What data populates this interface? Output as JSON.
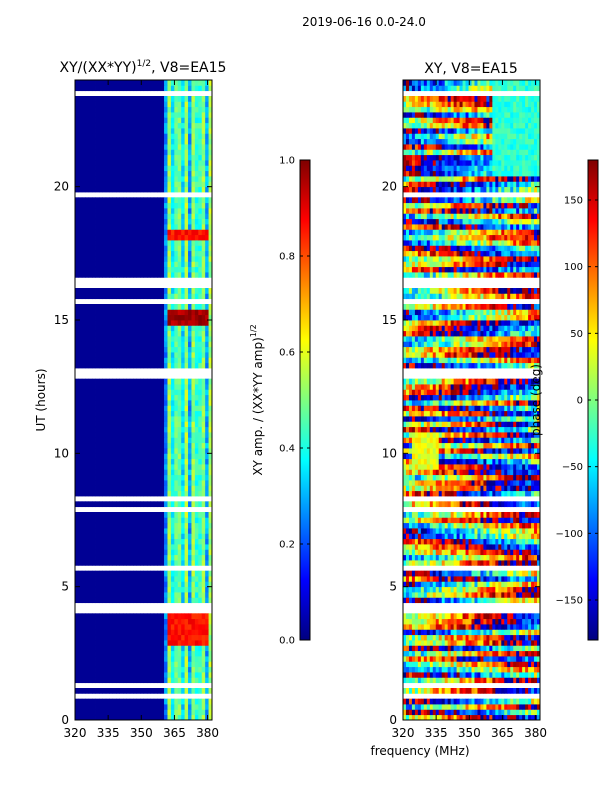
{
  "figure": {
    "suptitle": "2019-06-16 0.0-24.0",
    "shared_xlabel": "frequency (MHz)"
  },
  "chart_data": [
    {
      "type": "heatmap",
      "title": "XY/(XX*YY)^1/2, V8=EA15",
      "title_main": "XY/(XX*YY)",
      "title_sup": "1/2",
      "title_tail": ", V8=EA15",
      "xlabel": "frequency (MHz)",
      "ylabel": "UT (hours)",
      "xlim": [
        320,
        382
      ],
      "ylim": [
        0,
        24
      ],
      "xticks": [
        320,
        335,
        350,
        365,
        380
      ],
      "yticks": [
        0,
        5,
        10,
        15,
        20
      ],
      "colormap": "jet",
      "colorbar": {
        "label": "XY amp. / (XX*YY amp)^1/2",
        "label_main": "XY amp. / (XX*YY amp)",
        "label_sup": "1/2",
        "range": [
          0.0,
          1.0
        ],
        "ticks": [
          0.0,
          0.2,
          0.4,
          0.6,
          0.8,
          1.0
        ],
        "tick_labels": [
          "0.0",
          "0.2",
          "0.4",
          "0.6",
          "0.8",
          "1.0"
        ]
      },
      "flagged_ut_hours": [
        0.9,
        1.3,
        4.2,
        5.7,
        7.9,
        8.3,
        13.0,
        15.7,
        16.4,
        19.7,
        23.5
      ],
      "features": [
        {
          "freq_range": [
            362,
            381
          ],
          "ut_range": [
            0,
            24
          ],
          "amplitude": 0.4,
          "note": "spectral bands"
        },
        {
          "freq_range": [
            362,
            380
          ],
          "ut_range": [
            2.9,
            4.0
          ],
          "amplitude": 0.9
        },
        {
          "freq_range": [
            362,
            380
          ],
          "ut_range": [
            14.9,
            15.3
          ],
          "amplitude": 1.0
        },
        {
          "freq_range": [
            362,
            380
          ],
          "ut_range": [
            18.1,
            18.4
          ],
          "amplitude": 0.9
        },
        {
          "freq_range": [
            320,
            361
          ],
          "ut_range": [
            0,
            24
          ],
          "amplitude": 0.0
        }
      ]
    },
    {
      "type": "heatmap",
      "title": "XY, V8=EA15",
      "xlabel": "frequency (MHz)",
      "ylabel": "",
      "xlim": [
        320,
        382
      ],
      "ylim": [
        0,
        24
      ],
      "xticks": [
        320,
        335,
        350,
        365,
        380
      ],
      "yticks": [
        0,
        5,
        10,
        15,
        20
      ],
      "colormap": "jet",
      "colorbar": {
        "label": "phase (deg)",
        "range": [
          -180,
          180
        ],
        "ticks": [
          -150,
          -100,
          -50,
          0,
          50,
          100,
          150
        ],
        "tick_labels": [
          "−150",
          "−100",
          "−50",
          "0",
          "50",
          "100",
          "150"
        ]
      },
      "flagged_ut_hours": [
        0.9,
        1.3,
        4.2,
        5.7,
        7.9,
        8.3,
        13.0,
        15.7,
        16.4,
        19.7,
        23.5
      ],
      "features": [
        {
          "ut_range": [
            0,
            24
          ],
          "phase_range": [
            -180,
            180
          ],
          "note": "phase structure across band"
        },
        {
          "freq_range": [
            324,
            336
          ],
          "ut_range": [
            9.5,
            10.8
          ],
          "phase": 40
        },
        {
          "freq_range": [
            360,
            382
          ],
          "ut_range": [
            20.5,
            24
          ],
          "phase": -30
        }
      ]
    }
  ]
}
